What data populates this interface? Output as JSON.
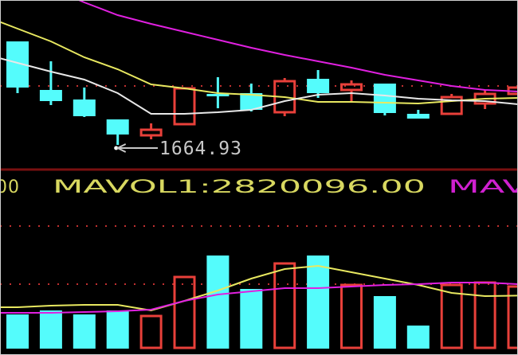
{
  "chart_data": [
    {
      "type": "candlestick",
      "panel": "price",
      "annotation": {
        "label": "1664.93",
        "arrow": "left",
        "candle_index": 3,
        "value": 1664.93
      },
      "reference_line": 1701.93,
      "colors": {
        "up": "#e8403a",
        "down": "#54fcfc",
        "ma_a": "#e8e860",
        "ma_b": "#e8e8e8",
        "ma_c": "#e020e0",
        "grid": "#c03030",
        "annotation": "#c8c8c8"
      },
      "candles": [
        {
          "o": 1729.93,
          "h": 1729.93,
          "l": 1697.43,
          "c": 1700.93
        },
        {
          "o": 1699.43,
          "h": 1717.43,
          "l": 1689.93,
          "c": 1692.43
        },
        {
          "o": 1693.43,
          "h": 1700.93,
          "l": 1682.43,
          "c": 1682.93
        },
        {
          "o": 1680.93,
          "h": 1680.93,
          "l": 1664.93,
          "c": 1671.43
        },
        {
          "o": 1670.93,
          "h": 1678.43,
          "l": 1668.43,
          "c": 1674.43
        },
        {
          "o": 1677.93,
          "h": 1700.43,
          "l": 1677.93,
          "c": 1700.43
        },
        {
          "o": 1696.93,
          "h": 1707.43,
          "l": 1687.93,
          "c": 1695.43
        },
        {
          "o": 1697.43,
          "h": 1703.43,
          "l": 1685.93,
          "c": 1686.93
        },
        {
          "o": 1685.43,
          "h": 1706.93,
          "l": 1682.93,
          "c": 1704.93
        },
        {
          "o": 1706.43,
          "h": 1711.93,
          "l": 1694.43,
          "c": 1697.43
        },
        {
          "o": 1699.43,
          "h": 1705.43,
          "l": 1691.93,
          "c": 1702.93
        },
        {
          "o": 1703.43,
          "h": 1703.43,
          "l": 1683.43,
          "c": 1684.93
        },
        {
          "o": 1684.43,
          "h": 1686.93,
          "l": 1681.43,
          "c": 1681.43
        },
        {
          "o": 1684.43,
          "h": 1696.93,
          "l": 1684.43,
          "c": 1694.93
        },
        {
          "o": 1690.93,
          "h": 1699.43,
          "l": 1687.43,
          "c": 1696.93
        },
        {
          "o": 1696.93,
          "h": 1701.93,
          "l": 1695.93,
          "c": 1700.93
        }
      ],
      "ma_lines": [
        {
          "color": "#e8e860",
          "values": [
            1737.93,
            1729.93,
            1719.93,
            1712.43,
            1702.93,
            1700.43,
            1697.43,
            1696.43,
            1694.93,
            1691.93,
            1691.93,
            1691.43,
            1690.93,
            1692.43,
            1693.93,
            1694.43
          ]
        },
        {
          "color": "#e8e8e8",
          "values": [
            1716.43,
            1710.93,
            1705.93,
            1697.43,
            1684.43,
            1684.43,
            1685.43,
            1686.93,
            1692.43,
            1696.43,
            1697.43,
            1695.93,
            1693.93,
            1692.93,
            1692.43,
            1690.43
          ]
        },
        {
          "color": "#e020e0",
          "values": [
            1770.93,
            1763.43,
            1754.43,
            1746.43,
            1740.93,
            1735.93,
            1730.93,
            1725.93,
            1721.43,
            1717.43,
            1713.43,
            1708.93,
            1705.43,
            1701.93,
            1699.43,
            1698.43
          ]
        }
      ]
    },
    {
      "type": "bar",
      "panel": "volume",
      "legend": {
        "truncated_prefix": "00",
        "mavol1_label": "MAVOL1:2820096.00",
        "mavol2_label": "MAV"
      },
      "grid_lines": [
        6579000,
        3440000
      ],
      "up": [
        false,
        false,
        false,
        false,
        true,
        true,
        false,
        false,
        true,
        false,
        true,
        false,
        false,
        true,
        true,
        true
      ],
      "values": [
        1806000,
        2021000,
        1806000,
        2021000,
        1720000,
        3827000,
        4988000,
        3182000,
        4558000,
        4988000,
        3397000,
        2795000,
        1204000,
        3397000,
        3526000,
        3311000
      ],
      "mavol1": [
        2193000,
        2279000,
        2322000,
        2322000,
        2021000,
        2537000,
        3096000,
        3741000,
        4257000,
        4429000,
        4085000,
        3741000,
        3397000,
        2967000,
        2795000,
        2820096
      ],
      "mavol2": [
        1892000,
        1892000,
        1935000,
        1978000,
        2064000,
        2537000,
        2881000,
        3053000,
        3225000,
        3225000,
        3311000,
        3397000,
        3440000,
        3526000,
        3526000,
        3440000
      ]
    }
  ]
}
